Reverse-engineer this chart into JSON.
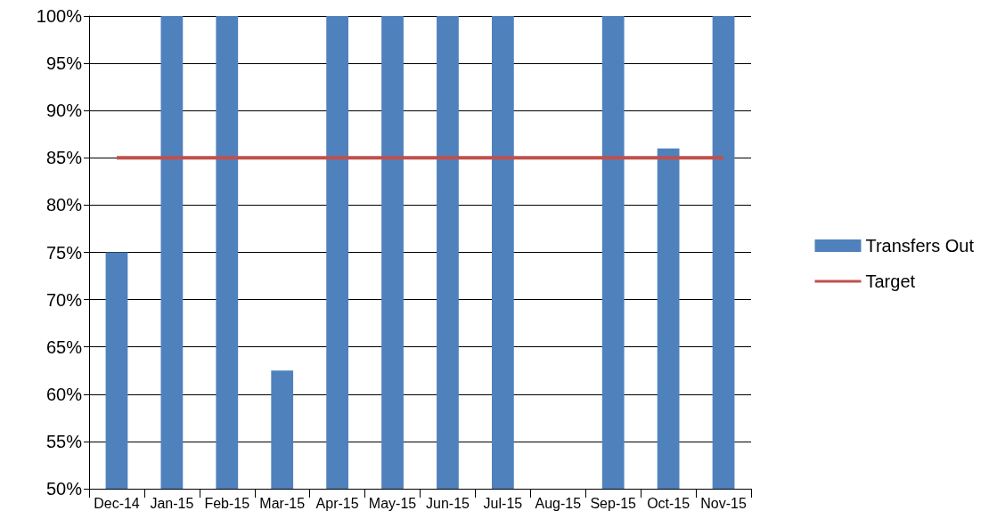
{
  "chart_data": {
    "type": "bar",
    "categories": [
      "Dec-14",
      "Jan-15",
      "Feb-15",
      "Mar-15",
      "Apr-15",
      "May-15",
      "Jun-15",
      "Jul-15",
      "Aug-15",
      "Sep-15",
      "Oct-15",
      "Nov-15"
    ],
    "series": [
      {
        "name": "Transfers Out",
        "color": "#4f81bd",
        "values": [
          75,
          100,
          100,
          62.5,
          100,
          100,
          100,
          100,
          null,
          100,
          86,
          100
        ]
      },
      {
        "name": "Target",
        "type": "line",
        "color": "#c0504d",
        "marker": "none",
        "values": [
          85,
          85,
          85,
          85,
          85,
          85,
          85,
          85,
          85,
          85,
          85,
          85
        ]
      }
    ],
    "ylim": [
      50,
      100
    ],
    "yticks": [
      {
        "value": 50,
        "label": "50%"
      },
      {
        "value": 55,
        "label": "55%"
      },
      {
        "value": 60,
        "label": "60%"
      },
      {
        "value": 65,
        "label": "65%"
      },
      {
        "value": 70,
        "label": "70%"
      },
      {
        "value": 75,
        "label": "75%"
      },
      {
        "value": 80,
        "label": "80%"
      },
      {
        "value": 85,
        "label": "85%"
      },
      {
        "value": 90,
        "label": "90%"
      },
      {
        "value": 95,
        "label": "95%"
      },
      {
        "value": 100,
        "label": "100%"
      }
    ],
    "grid": "y",
    "legend": "right"
  }
}
